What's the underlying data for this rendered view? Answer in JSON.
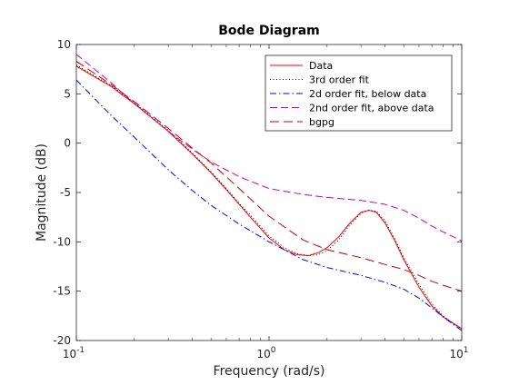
{
  "chart_data": {
    "type": "line",
    "title": "Bode Diagram",
    "xlabel": "Frequency  (rad/s)",
    "ylabel": "Magnitude (dB)",
    "xscale": "log",
    "xlim": [
      0.1,
      10
    ],
    "ylim": [
      -20,
      10
    ],
    "x_ticks": [
      {
        "value": 0.1,
        "base": "10",
        "exp": "-1"
      },
      {
        "value": 1,
        "base": "10",
        "exp": "0"
      },
      {
        "value": 10,
        "base": "10",
        "exp": "1"
      }
    ],
    "y_ticks": [
      {
        "value": 10,
        "label": "10"
      },
      {
        "value": 5,
        "label": "5"
      },
      {
        "value": 0,
        "label": "0"
      },
      {
        "value": -5,
        "label": "-5"
      },
      {
        "value": -10,
        "label": "-10"
      },
      {
        "value": -15,
        "label": "-15"
      },
      {
        "value": -20,
        "label": "-20"
      }
    ],
    "grid": false,
    "legend_position": "top-right",
    "series": [
      {
        "name": "Data",
        "color": "#ff0000",
        "dash": "solid",
        "x": [
          0.1,
          0.15,
          0.2,
          0.3,
          0.4,
          0.5,
          0.6,
          0.7,
          0.8,
          1.0,
          1.2,
          1.4,
          1.6,
          1.8,
          2.0,
          2.3,
          2.6,
          3.0,
          3.3,
          3.6,
          4.0,
          4.5,
          5.0,
          6.0,
          7.0,
          8.0,
          10.0
        ],
        "y": [
          7.8,
          5.8,
          4.0,
          1.2,
          -1.1,
          -3.0,
          -4.7,
          -6.2,
          -7.5,
          -9.6,
          -10.8,
          -11.3,
          -11.4,
          -11.1,
          -10.6,
          -9.5,
          -8.2,
          -7.0,
          -6.8,
          -7.0,
          -8.1,
          -9.9,
          -11.8,
          -14.6,
          -16.5,
          -17.6,
          -18.8
        ]
      },
      {
        "name": "3rd order fit",
        "color": "#000000",
        "dash": "dotted",
        "x": [
          0.1,
          0.15,
          0.2,
          0.3,
          0.4,
          0.5,
          0.6,
          0.7,
          0.8,
          1.0,
          1.2,
          1.4,
          1.6,
          1.8,
          2.0,
          2.3,
          2.6,
          3.0,
          3.3,
          3.6,
          4.0,
          4.5,
          5.0,
          6.0,
          7.0,
          8.0,
          10.0
        ],
        "y": [
          7.9,
          5.9,
          4.1,
          1.3,
          -1.0,
          -2.9,
          -4.6,
          -6.1,
          -7.3,
          -9.4,
          -10.6,
          -11.2,
          -11.4,
          -11.3,
          -10.9,
          -9.8,
          -8.4,
          -7.1,
          -6.8,
          -6.9,
          -7.9,
          -9.7,
          -11.6,
          -14.3,
          -16.3,
          -17.5,
          -18.9
        ]
      },
      {
        "name": "2d order fit, below data",
        "color": "#0000ff",
        "dash": "dashdot",
        "x": [
          0.1,
          0.15,
          0.2,
          0.3,
          0.4,
          0.5,
          0.7,
          1.0,
          1.5,
          2.0,
          3.0,
          4.0,
          5.0,
          6.0,
          7.0,
          8.0,
          10.0
        ],
        "y": [
          6.4,
          2.9,
          0.6,
          -2.7,
          -4.8,
          -6.3,
          -8.2,
          -10.0,
          -11.8,
          -12.6,
          -13.4,
          -14.1,
          -14.8,
          -15.7,
          -16.7,
          -17.6,
          -19.0
        ]
      },
      {
        "name": "2nd order fit, above data",
        "color": "#bf00bf",
        "dash": "dashed",
        "x": [
          0.1,
          0.15,
          0.2,
          0.3,
          0.4,
          0.5,
          0.7,
          1.0,
          1.5,
          2.0,
          3.0,
          4.0,
          5.0,
          6.0,
          7.0,
          8.0,
          10.0
        ],
        "y": [
          9.0,
          6.2,
          4.0,
          1.2,
          -0.6,
          -1.9,
          -3.4,
          -4.6,
          -5.2,
          -5.5,
          -5.8,
          -6.2,
          -6.8,
          -7.6,
          -8.4,
          -9.0,
          -9.9
        ]
      },
      {
        "name": "bgpg",
        "color": "#cc0000",
        "dash": "longdash",
        "x": [
          0.1,
          0.15,
          0.2,
          0.3,
          0.4,
          0.5,
          0.7,
          1.0,
          1.5,
          2.0,
          3.0,
          4.0,
          5.0,
          6.0,
          7.0,
          8.0,
          10.0
        ],
        "y": [
          8.3,
          6.0,
          4.2,
          1.5,
          -0.5,
          -2.0,
          -4.6,
          -7.4,
          -9.8,
          -10.8,
          -11.6,
          -12.3,
          -12.8,
          -13.4,
          -14.0,
          -14.4,
          -15.0
        ]
      }
    ]
  }
}
